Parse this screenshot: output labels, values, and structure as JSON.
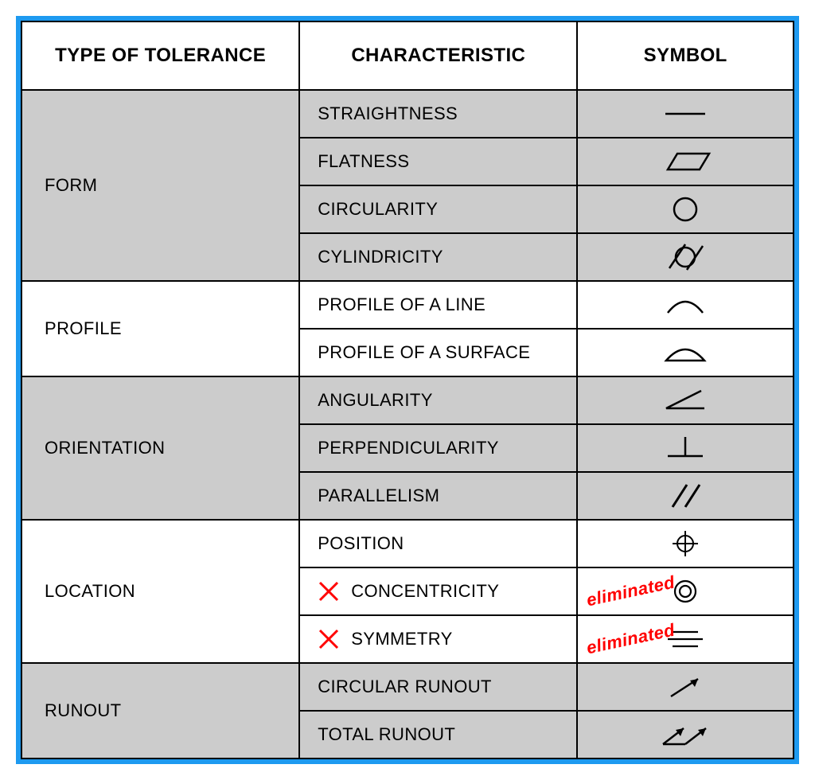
{
  "border_color": "#1E9AF0",
  "shade_color": "#cccccc",
  "eliminated_color": "#ff0000",
  "stroke_color": "#000000",
  "header_fontsize": 24,
  "cell_fontsize": 22,
  "columns": [
    "TYPE OF TOLERANCE",
    "CHARACTERISTIC",
    "SYMBOL"
  ],
  "groups": [
    {
      "type": "FORM",
      "shaded": true,
      "rows": [
        {
          "label": "STRAIGHTNESS",
          "symbol": "straightness"
        },
        {
          "label": "FLATNESS",
          "symbol": "flatness"
        },
        {
          "label": "CIRCULARITY",
          "symbol": "circularity"
        },
        {
          "label": "CYLINDRICITY",
          "symbol": "cylindricity"
        }
      ]
    },
    {
      "type": "PROFILE",
      "shaded": false,
      "rows": [
        {
          "label": "PROFILE OF A LINE",
          "symbol": "profile_line"
        },
        {
          "label": "PROFILE OF A SURFACE",
          "symbol": "profile_surface"
        }
      ]
    },
    {
      "type": "ORIENTATION",
      "shaded": true,
      "rows": [
        {
          "label": "ANGULARITY",
          "symbol": "angularity"
        },
        {
          "label": "PERPENDICULARITY",
          "symbol": "perpendicularity"
        },
        {
          "label": "PARALLELISM",
          "symbol": "parallelism"
        }
      ]
    },
    {
      "type": "LOCATION",
      "shaded": false,
      "rows": [
        {
          "label": "POSITION",
          "symbol": "position"
        },
        {
          "label": "CONCENTRICITY",
          "symbol": "concentricity",
          "eliminated": true
        },
        {
          "label": "SYMMETRY",
          "symbol": "symmetry",
          "eliminated": true
        }
      ]
    },
    {
      "type": "RUNOUT",
      "shaded": true,
      "rows": [
        {
          "label": "CIRCULAR RUNOUT",
          "symbol": "circ_runout"
        },
        {
          "label": "TOTAL RUNOUT",
          "symbol": "total_runout"
        }
      ]
    }
  ],
  "eliminated_label": "eliminated"
}
